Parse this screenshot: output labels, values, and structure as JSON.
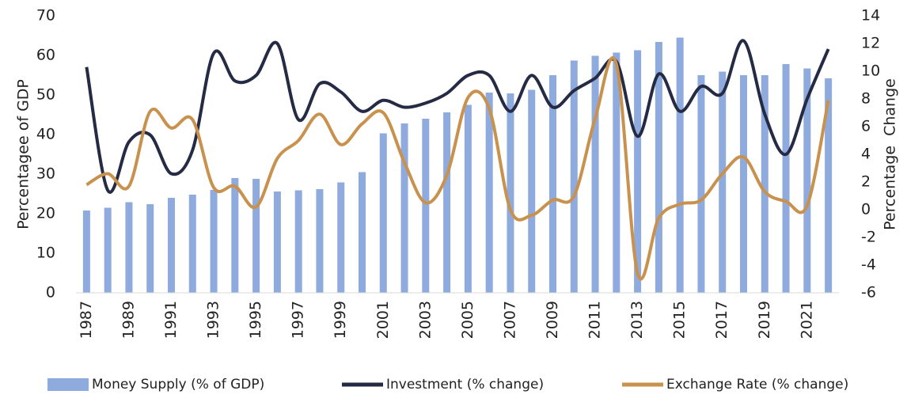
{
  "chart_data": {
    "type": "combo",
    "y_label": "Percentagee of GDP",
    "y2_label": "Percentage  Change",
    "categories": [
      "1987",
      null,
      "1989",
      null,
      "1991",
      null,
      "1993",
      null,
      "1995",
      null,
      "1997",
      null,
      "1999",
      null,
      "2001",
      null,
      "2003",
      null,
      "2005",
      null,
      "2007",
      null,
      "2009",
      null,
      "2011",
      null,
      "2013",
      null,
      "2015",
      null,
      "2017",
      null,
      "2019",
      null,
      "2021",
      null
    ],
    "ylim": [
      0,
      70
    ],
    "yticks": [
      0,
      10,
      20,
      30,
      40,
      50,
      60,
      70
    ],
    "y2lim": [
      -6,
      14
    ],
    "y2ticks": [
      -6,
      -4,
      -2,
      0,
      2,
      4,
      6,
      8,
      10,
      12,
      14
    ],
    "series": [
      {
        "name": "Money Supply (% of GDP)",
        "type": "bar",
        "color": "#8faadc",
        "values": [
          20.8,
          21.5,
          22.9,
          22.4,
          24.0,
          24.8,
          26.0,
          29.0,
          28.8,
          25.6,
          25.9,
          26.2,
          27.9,
          30.5,
          40.3,
          42.8,
          44.0,
          45.6,
          47.5,
          50.6,
          50.4,
          51.3,
          55.0,
          58.7,
          59.9,
          60.7,
          61.3,
          63.4,
          64.5,
          55.0,
          55.9,
          55.0,
          55.0,
          57.8,
          56.7,
          54.2
        ]
      },
      {
        "name": "Investment (% change)",
        "type": "line",
        "axis": "y2",
        "color": "#262b45",
        "values": [
          10.3,
          1.4,
          4.9,
          5.4,
          2.6,
          4.3,
          11.3,
          9.3,
          9.7,
          12.0,
          6.5,
          9.1,
          8.5,
          7.1,
          7.9,
          7.4,
          7.7,
          8.4,
          9.7,
          9.7,
          7.1,
          9.7,
          7.4,
          8.6,
          9.5,
          10.7,
          5.3,
          9.8,
          7.1,
          8.9,
          8.4,
          12.2,
          6.9,
          4.0,
          8.0,
          11.6
        ]
      },
      {
        "name": "Exchange Rate (% change)",
        "type": "line",
        "axis": "y2",
        "color": "#c8924e",
        "values": [
          1.8,
          2.6,
          1.7,
          7.1,
          5.9,
          6.5,
          1.6,
          1.7,
          0.2,
          3.7,
          5.0,
          6.9,
          4.7,
          6.2,
          7.0,
          3.4,
          0.5,
          2.5,
          8.1,
          7.3,
          0.0,
          -0.4,
          0.7,
          1.0,
          6.6,
          10.5,
          -4.6,
          -0.6,
          0.4,
          0.7,
          2.6,
          3.8,
          1.3,
          0.6,
          0.3,
          7.9
        ]
      }
    ],
    "legend": "bottom"
  }
}
